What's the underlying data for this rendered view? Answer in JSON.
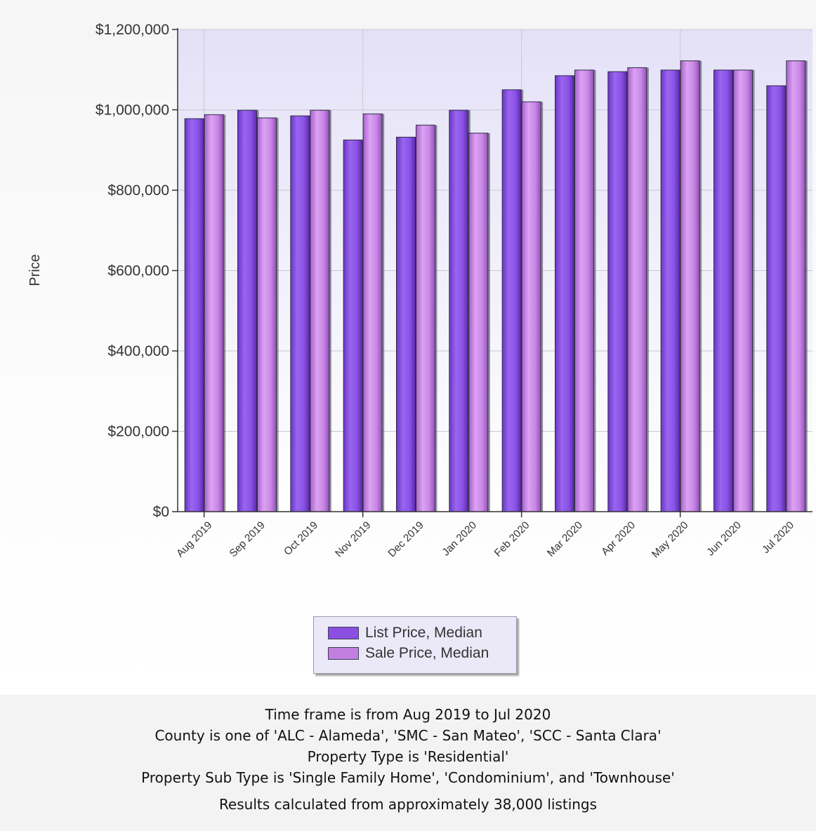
{
  "chart_data": {
    "type": "bar",
    "title": "",
    "xlabel": "",
    "ylabel": "Price",
    "ylim": [
      0,
      1200000
    ],
    "yticks": [
      "$0",
      "$200,000",
      "$400,000",
      "$600,000",
      "$800,000",
      "$1,000,000",
      "$1,200,000"
    ],
    "ytick_values": [
      0,
      200000,
      400000,
      600000,
      800000,
      1000000,
      1200000
    ],
    "categories": [
      "Aug 2019",
      "Sep 2019",
      "Oct 2019",
      "Nov 2019",
      "Dec 2019",
      "Jan 2020",
      "Feb 2020",
      "Mar 2020",
      "Apr 2020",
      "May 2020",
      "Jun 2020",
      "Jul 2020"
    ],
    "series": [
      {
        "name": "List Price, Median",
        "color": "#8a4fe0",
        "values": [
          978000,
          999000,
          985000,
          925000,
          932000,
          999000,
          1050000,
          1085000,
          1095000,
          1099000,
          1099000,
          1060000
        ]
      },
      {
        "name": "Sale Price, Median",
        "color": "#c27fe0",
        "values": [
          988000,
          980000,
          999000,
          990000,
          962000,
          942000,
          1020000,
          1099000,
          1105000,
          1122000,
          1099000,
          1122000
        ]
      }
    ],
    "grid": true,
    "legend_position": "bottom-center"
  },
  "notes": {
    "line1": "Time frame is from Aug 2019 to Jul 2020",
    "line2": "County is one of 'ALC - Alameda', 'SMC - San Mateo', 'SCC - Santa Clara'",
    "line3": "Property Type is 'Residential'",
    "line4": "Property Sub Type is 'Single Family Home', 'Condominium', and 'Townhouse'",
    "line5": "Results calculated from approximately 38,000 listings"
  }
}
